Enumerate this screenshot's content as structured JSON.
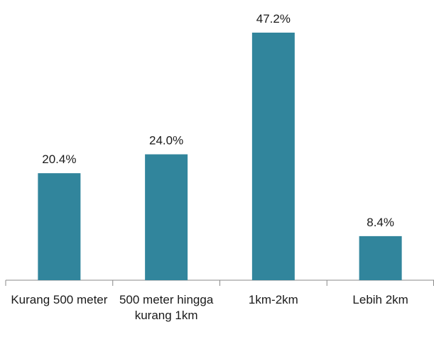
{
  "chart_data": {
    "type": "bar",
    "categories": [
      "Kurang 500 meter",
      "500 meter hingga kurang 1km",
      "1km-2km",
      "Lebih 2km"
    ],
    "values": [
      20.4,
      24.0,
      47.2,
      8.4
    ],
    "value_labels": [
      "20.4%",
      "24.0%",
      "47.2%",
      "8.4%"
    ],
    "color": "#31859c"
  }
}
